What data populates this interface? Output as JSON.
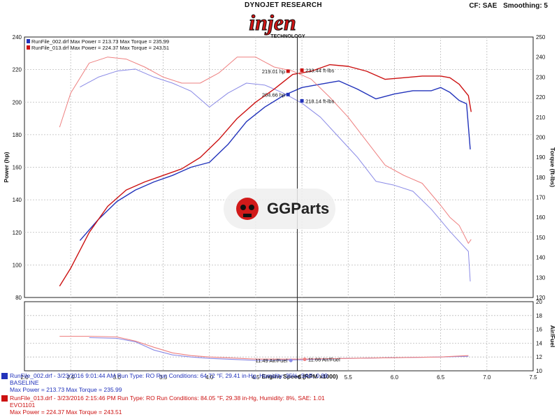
{
  "header": {
    "brand_line": "DYNOJET RESEARCH",
    "logo_text": "injen",
    "logo_sub": "TECHNOLOGY",
    "correction": "CF: SAE",
    "smoothing": "Smoothing: 5"
  },
  "watermark": {
    "text": "GGParts",
    "icon": "skull-logo-icon"
  },
  "legend": [
    {
      "text": "RunFile_002.drf Max Power = 213.73    Max Torque = 235.99",
      "color": "#2233bb"
    },
    {
      "text": "RunFile_013.drf Max Power = 224.37    Max Torque = 243.51",
      "color": "#cc1111"
    }
  ],
  "colors": {
    "blue": "#2233bb",
    "blue_light": "#8a8ae6",
    "red": "#cc1111",
    "red_light": "#ee8080"
  },
  "chart_data": {
    "type": "line",
    "xlabel": "Engine Speed (RPM x1000)",
    "xlim": [
      2.0,
      7.5
    ],
    "x_ticks": [
      "2.0",
      "2.5",
      "3.0",
      "3.5",
      "4.0",
      "4.5",
      "5.0",
      "5.5",
      "6.0",
      "6.5",
      "7.0",
      "7.5"
    ],
    "top": {
      "ylabel_left": "Power (hp)",
      "ylabel_right": "Torque (ft-lbs)",
      "ylim_left": [
        80,
        240
      ],
      "ylim_right": [
        120,
        250
      ],
      "left_ticks": [
        "80",
        "100",
        "120",
        "140",
        "160",
        "180",
        "200",
        "220",
        "240"
      ],
      "right_ticks": [
        "120",
        "130",
        "140",
        "150",
        "160",
        "170",
        "180",
        "190",
        "200",
        "210",
        "220",
        "230",
        "240",
        "250"
      ],
      "series": [
        {
          "name": "RunFile_002.drf Power",
          "role": "power",
          "run": "blue",
          "x": [
            2.6,
            2.8,
            3.0,
            3.2,
            3.4,
            3.6,
            3.8,
            4.0,
            4.2,
            4.4,
            4.6,
            4.8,
            5.0,
            5.2,
            5.4,
            5.6,
            5.8,
            6.0,
            6.2,
            6.4,
            6.5,
            6.6,
            6.7,
            6.78,
            6.82
          ],
          "y": [
            115,
            128,
            139,
            146,
            151,
            155,
            160,
            163,
            174,
            188,
            197,
            204,
            209,
            211,
            213,
            208,
            202,
            205,
            207,
            207,
            209,
            206,
            201,
            199,
            171
          ]
        },
        {
          "name": "RunFile_002.drf Torque",
          "role": "torque",
          "run": "blue",
          "x": [
            2.6,
            2.8,
            3.0,
            3.2,
            3.4,
            3.6,
            3.8,
            4.0,
            4.2,
            4.4,
            4.6,
            4.8,
            5.0,
            5.2,
            5.4,
            5.6,
            5.8,
            6.0,
            6.2,
            6.4,
            6.6,
            6.7,
            6.8,
            6.82
          ],
          "y": [
            225,
            230,
            233,
            234,
            230,
            227,
            223,
            215,
            222,
            227,
            226,
            222,
            217,
            210,
            200,
            190,
            178,
            176,
            173,
            164,
            153,
            148,
            143,
            128
          ]
        },
        {
          "name": "RunFile_013.drf Power",
          "role": "power",
          "run": "red",
          "x": [
            2.38,
            2.5,
            2.7,
            2.9,
            3.1,
            3.3,
            3.5,
            3.7,
            3.9,
            4.1,
            4.3,
            4.5,
            4.7,
            4.9,
            5.1,
            5.3,
            5.5,
            5.7,
            5.9,
            6.1,
            6.3,
            6.5,
            6.6,
            6.7,
            6.8,
            6.83
          ],
          "y": [
            87,
            98,
            120,
            136,
            146,
            151,
            155,
            159,
            166,
            177,
            190,
            200,
            208,
            217,
            219,
            223,
            222,
            219,
            214,
            215,
            216,
            216,
            215,
            211,
            204,
            194
          ]
        },
        {
          "name": "RunFile_013.drf Torque",
          "role": "torque",
          "run": "red",
          "x": [
            2.38,
            2.5,
            2.7,
            2.9,
            3.1,
            3.3,
            3.5,
            3.7,
            3.9,
            4.1,
            4.3,
            4.5,
            4.7,
            4.9,
            5.1,
            5.3,
            5.5,
            5.7,
            5.9,
            6.1,
            6.3,
            6.5,
            6.6,
            6.7,
            6.8,
            6.83
          ],
          "y": [
            205,
            222,
            237,
            240,
            239,
            235,
            230,
            227,
            227,
            232,
            240,
            240,
            235,
            233,
            229,
            220,
            210,
            198,
            186,
            181,
            177,
            166,
            160,
            156,
            147,
            149
          ]
        }
      ],
      "annotations": [
        {
          "text": "219.01 hp",
          "x": 4.85,
          "y": 219.01,
          "axis": "left",
          "run": "red",
          "side": "left"
        },
        {
          "text": "233.44 ft-lbs",
          "x": 5.0,
          "y": 233.44,
          "axis": "right",
          "run": "red",
          "side": "right"
        },
        {
          "text": "204.66 hp",
          "x": 4.85,
          "y": 204.66,
          "axis": "left",
          "run": "blue",
          "side": "left"
        },
        {
          "text": "218.14 ft-lbs",
          "x": 5.0,
          "y": 218.14,
          "axis": "right",
          "run": "blue",
          "side": "right"
        }
      ]
    },
    "bottom": {
      "ylabel": "Air/Fuel",
      "ylim": [
        10,
        20
      ],
      "ticks": [
        "10",
        "12",
        "14",
        "16",
        "18",
        "20"
      ],
      "series": [
        {
          "name": "RunFile_002.drf Air/Fuel",
          "run": "blue",
          "x": [
            2.7,
            3.0,
            3.2,
            3.4,
            3.6,
            3.8,
            4.0,
            4.5,
            5.0,
            5.5,
            6.0,
            6.5,
            6.8
          ],
          "y": [
            14.8,
            14.7,
            14.2,
            13.0,
            12.3,
            12.0,
            11.8,
            11.5,
            11.6,
            11.8,
            11.9,
            12.0,
            12.1
          ]
        },
        {
          "name": "RunFile_013.drf Air/Fuel",
          "run": "red",
          "x": [
            2.38,
            2.7,
            3.0,
            3.2,
            3.4,
            3.6,
            3.8,
            4.0,
            4.5,
            5.0,
            5.5,
            6.0,
            6.5,
            6.8
          ],
          "y": [
            15.0,
            15.0,
            14.9,
            14.3,
            13.4,
            12.6,
            12.2,
            12.0,
            11.7,
            11.7,
            11.8,
            11.9,
            12.0,
            12.2
          ]
        }
      ],
      "annotations": [
        {
          "text": "11.49 Air/Fuel",
          "x": 4.88,
          "y": 11.49,
          "run": "blue",
          "side": "left"
        },
        {
          "text": "11.66 Air/Fuel",
          "x": 5.03,
          "y": 11.66,
          "run": "red",
          "side": "right"
        }
      ]
    },
    "cursor_x": 4.95
  },
  "footer": {
    "runs": [
      {
        "line1": "RunFile_002.drf - 3/23/2016 9:01:44 AM  Run Type: RO  Run Conditions: 64.72 °F, 29.41 in-Hg,  Humidity: 35%, SAE: 0.99",
        "line2": "BASELINE",
        "line3": "Max Power = 213.73  Max Torque = 235.99",
        "color": "#2233bb"
      },
      {
        "line1": "RunFile_013.drf - 3/23/2016 2:15:46 PM  Run Type: RO  Run Conditions: 84.05 °F, 29.38 in-Hg,  Humidity:  8%, SAE: 1.01",
        "line2": "EVO1101",
        "line3": "Max Power = 224.37  Max Torque = 243.51",
        "color": "#cc1111"
      }
    ]
  }
}
